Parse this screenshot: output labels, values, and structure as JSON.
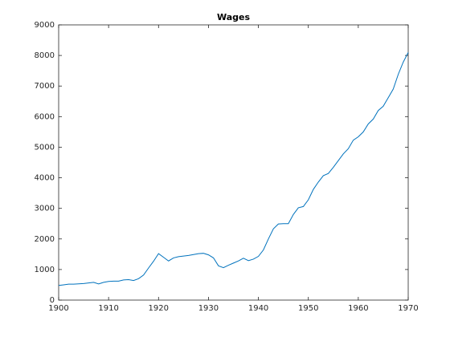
{
  "chart_data": {
    "type": "line",
    "title": "Wages",
    "x": [
      1900,
      1901,
      1902,
      1903,
      1904,
      1905,
      1906,
      1907,
      1908,
      1909,
      1910,
      1911,
      1912,
      1913,
      1914,
      1915,
      1916,
      1917,
      1918,
      1919,
      1920,
      1921,
      1922,
      1923,
      1924,
      1925,
      1926,
      1927,
      1928,
      1929,
      1930,
      1931,
      1932,
      1933,
      1934,
      1935,
      1936,
      1937,
      1938,
      1939,
      1940,
      1941,
      1942,
      1943,
      1944,
      1945,
      1946,
      1947,
      1948,
      1949,
      1950,
      1951,
      1952,
      1953,
      1954,
      1955,
      1956,
      1957,
      1958,
      1959,
      1960,
      1961,
      1962,
      1963,
      1964,
      1965,
      1966,
      1967,
      1968,
      1969,
      1970
    ],
    "series": [
      {
        "color": "#0072bd",
        "values": [
          480,
          500,
          520,
          520,
          530,
          540,
          560,
          580,
          530,
          580,
          610,
          620,
          620,
          660,
          670,
          640,
          700,
          820,
          1050,
          1270,
          1520,
          1400,
          1280,
          1380,
          1420,
          1440,
          1460,
          1490,
          1520,
          1530,
          1480,
          1380,
          1120,
          1060,
          1140,
          1210,
          1280,
          1370,
          1290,
          1340,
          1430,
          1640,
          2000,
          2330,
          2490,
          2500,
          2500,
          2800,
          3020,
          3060,
          3280,
          3620,
          3860,
          4070,
          4140,
          4340,
          4560,
          4780,
          4950,
          5230,
          5340,
          5500,
          5760,
          5920,
          6200,
          6340,
          6620,
          6900,
          7380,
          7780,
          8100
        ]
      }
    ],
    "xlim": [
      1900,
      1970
    ],
    "xticks": [
      1900,
      1910,
      1920,
      1930,
      1940,
      1950,
      1960,
      1970
    ],
    "ylim": [
      0,
      9000
    ],
    "yticks": [
      0,
      1000,
      2000,
      3000,
      4000,
      5000,
      6000,
      7000,
      8000,
      9000
    ]
  }
}
